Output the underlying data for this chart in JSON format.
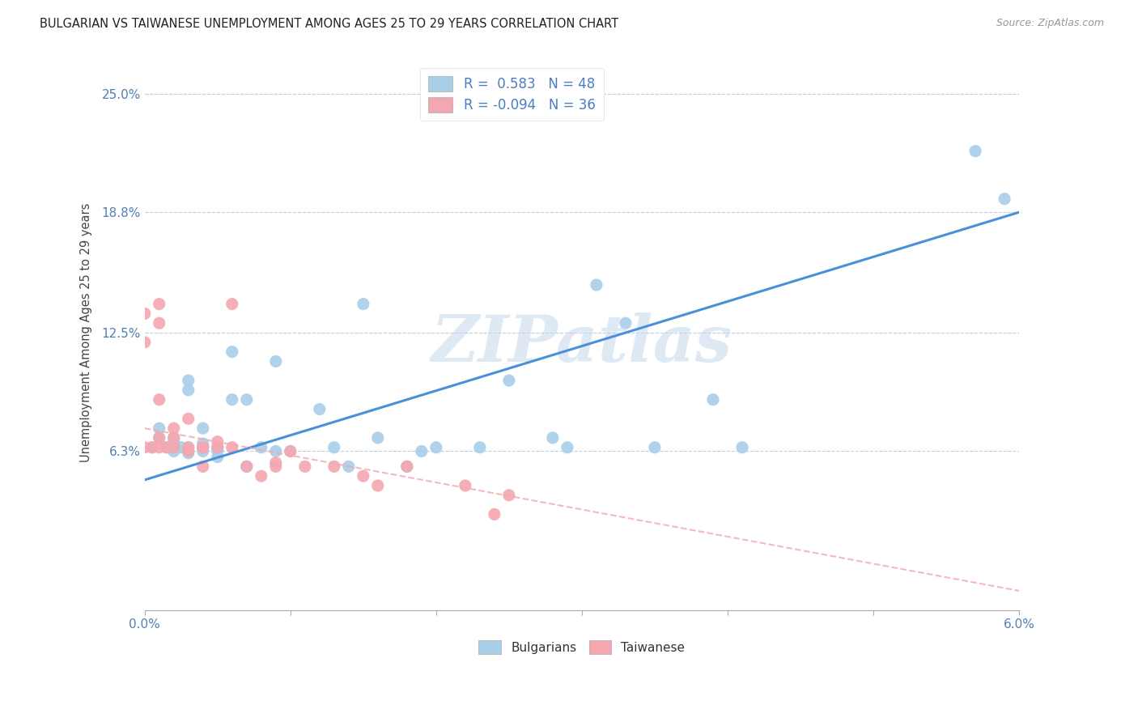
{
  "title": "BULGARIAN VS TAIWANESE UNEMPLOYMENT AMONG AGES 25 TO 29 YEARS CORRELATION CHART",
  "source": "Source: ZipAtlas.com",
  "ylabel": "Unemployment Among Ages 25 to 29 years",
  "xlim": [
    0.0,
    0.06
  ],
  "ylim": [
    -0.02,
    0.27
  ],
  "yticks": [
    0.063,
    0.125,
    0.188,
    0.25
  ],
  "ytick_labels": [
    "6.3%",
    "12.5%",
    "18.8%",
    "25.0%"
  ],
  "xtick_positions": [
    0.0,
    0.01,
    0.02,
    0.03,
    0.04,
    0.05,
    0.06
  ],
  "xtick_labels": [
    "0.0%",
    "",
    "",
    "",
    "",
    "",
    "6.0%"
  ],
  "bulgarian_color": "#A8CEE8",
  "taiwanese_color": "#F4A7B0",
  "trend_blue": "#4A90D9",
  "trend_pink": "#F4A7B0",
  "legend_blue_label": "R =  0.583   N = 48",
  "legend_pink_label": "R = -0.094   N = 36",
  "bottom_legend_blue": "Bulgarians",
  "bottom_legend_pink": "Taiwanese",
  "watermark": "ZIPatlas",
  "bulgarian_x": [
    0.0005,
    0.001,
    0.001,
    0.0015,
    0.002,
    0.002,
    0.002,
    0.002,
    0.0025,
    0.003,
    0.003,
    0.003,
    0.003,
    0.003,
    0.004,
    0.004,
    0.004,
    0.004,
    0.005,
    0.005,
    0.005,
    0.006,
    0.006,
    0.007,
    0.007,
    0.008,
    0.009,
    0.009,
    0.01,
    0.012,
    0.013,
    0.014,
    0.015,
    0.016,
    0.018,
    0.019,
    0.02,
    0.023,
    0.025,
    0.028,
    0.029,
    0.031,
    0.033,
    0.035,
    0.039,
    0.041,
    0.057,
    0.059
  ],
  "bulgarian_y": [
    0.065,
    0.07,
    0.075,
    0.065,
    0.063,
    0.065,
    0.068,
    0.07,
    0.065,
    0.062,
    0.063,
    0.065,
    0.095,
    0.1,
    0.063,
    0.065,
    0.067,
    0.075,
    0.06,
    0.063,
    0.065,
    0.09,
    0.115,
    0.055,
    0.09,
    0.065,
    0.063,
    0.11,
    0.063,
    0.085,
    0.065,
    0.055,
    0.14,
    0.07,
    0.055,
    0.063,
    0.065,
    0.065,
    0.1,
    0.07,
    0.065,
    0.15,
    0.13,
    0.065,
    0.09,
    0.065,
    0.22,
    0.195
  ],
  "taiwanese_x": [
    0.0,
    0.0,
    0.0,
    0.0005,
    0.001,
    0.001,
    0.001,
    0.001,
    0.001,
    0.0015,
    0.002,
    0.002,
    0.002,
    0.003,
    0.003,
    0.003,
    0.004,
    0.004,
    0.004,
    0.005,
    0.005,
    0.006,
    0.006,
    0.007,
    0.008,
    0.009,
    0.009,
    0.01,
    0.011,
    0.013,
    0.015,
    0.016,
    0.018,
    0.022,
    0.024,
    0.025
  ],
  "taiwanese_y": [
    0.065,
    0.12,
    0.135,
    0.065,
    0.065,
    0.07,
    0.09,
    0.13,
    0.14,
    0.065,
    0.065,
    0.07,
    0.075,
    0.063,
    0.065,
    0.08,
    0.065,
    0.065,
    0.055,
    0.065,
    0.068,
    0.065,
    0.14,
    0.055,
    0.05,
    0.057,
    0.055,
    0.063,
    0.055,
    0.055,
    0.05,
    0.045,
    0.055,
    0.045,
    0.03,
    0.04
  ],
  "blue_trend_x0": 0.0,
  "blue_trend_y0": 0.048,
  "blue_trend_x1": 0.06,
  "blue_trend_y1": 0.188,
  "pink_trend_x0": 0.0,
  "pink_trend_y0": 0.075,
  "pink_trend_x1": 0.06,
  "pink_trend_y1": -0.01
}
